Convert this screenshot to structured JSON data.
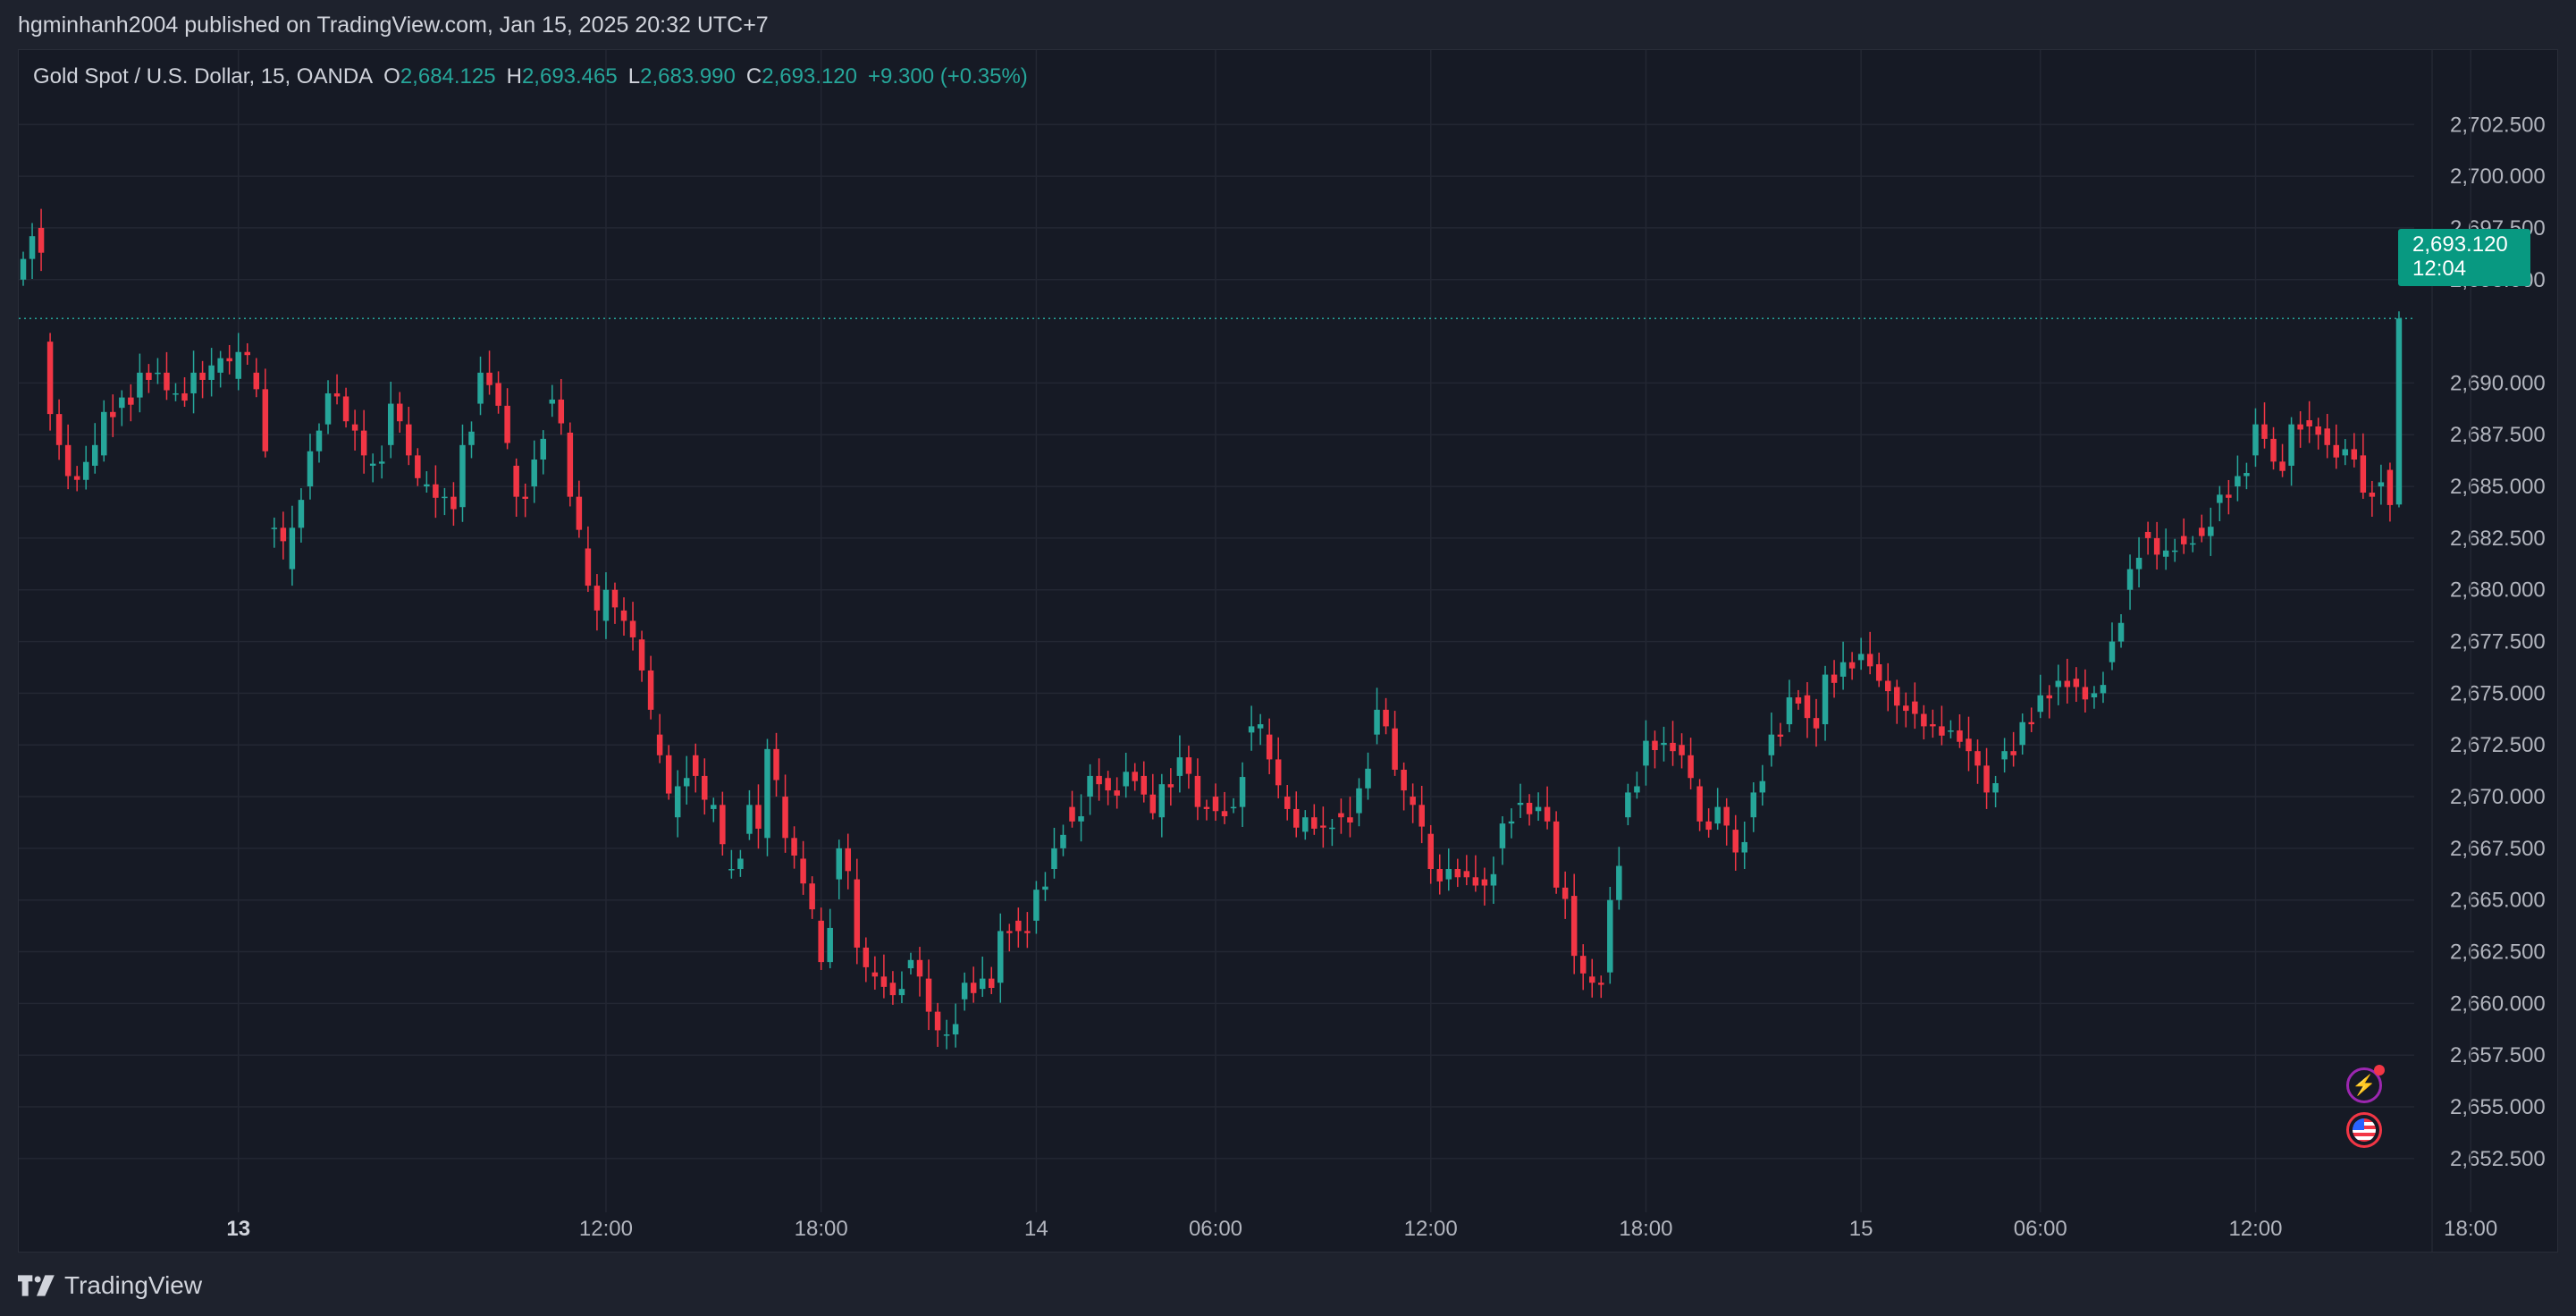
{
  "header": {
    "published_text": "hgminhanh2004 published on TradingView.com, Jan 15, 2025 20:32 UTC+7"
  },
  "legend": {
    "symbol": "Gold Spot / U.S. Dollar, 15, OANDA",
    "o_label": "O",
    "o_value": "2,684.125",
    "h_label": "H",
    "h_value": "2,693.465",
    "l_label": "L",
    "l_value": "2,683.990",
    "c_label": "C",
    "c_value": "2,693.120",
    "change": "+9.300 (+0.35%)"
  },
  "price_badge": {
    "price": "2,693.120",
    "countdown": "12:04"
  },
  "icons": {
    "flash": "lightning-icon",
    "flag": "us-flag-icon"
  },
  "footer": {
    "brand": "TradingView",
    "logo": "tradingview-logo-icon"
  },
  "colors": {
    "background": "#161a25",
    "up": "#26a69a",
    "down": "#f23645",
    "grid": "#232733",
    "text": "#d1d4dc",
    "badge": "#089981"
  },
  "chart_data": {
    "type": "candlestick",
    "symbol": "Gold Spot / U.S. Dollar",
    "interval": "15",
    "y_tick_labels": [
      "2,702.500",
      "2,700.000",
      "2,697.500",
      "2,695.000",
      "2,690.000",
      "2,687.500",
      "2,685.000",
      "2,682.500",
      "2,680.000",
      "2,677.500",
      "2,675.000",
      "2,672.500",
      "2,670.000",
      "2,667.500",
      "2,665.000",
      "2,662.500",
      "2,660.000",
      "2,657.500",
      "2,655.000",
      "2,652.500"
    ],
    "y_tick_values": [
      2702.5,
      2700,
      2697.5,
      2695,
      2690,
      2687.5,
      2685,
      2682.5,
      2680,
      2677.5,
      2675,
      2672.5,
      2670,
      2667.5,
      2665,
      2662.5,
      2660,
      2657.5,
      2655,
      2652.5
    ],
    "x_tick_labels": [
      "13",
      "12:00",
      "18:00",
      "14",
      "06:00",
      "12:00",
      "18:00",
      "15",
      "06:00",
      "12:00",
      "18:00"
    ],
    "x_tick_bold": [
      true,
      false,
      false,
      false,
      false,
      false,
      false,
      false,
      false,
      false,
      false
    ],
    "x_tick_bars": [
      24,
      65,
      89,
      113,
      133,
      157,
      181,
      205,
      225,
      249,
      273
    ],
    "ylim": [
      2649.9,
      2706.1
    ],
    "last_price": 2693.12,
    "anchors": [
      [
        0,
        2695,
        2696
      ],
      [
        2,
        2697.5,
        2696.3
      ],
      [
        3,
        2692,
        2688.5
      ],
      [
        4,
        2688.5,
        2687
      ],
      [
        5,
        2687,
        2685.5
      ],
      [
        8,
        2686,
        2687
      ],
      [
        9,
        2686.5,
        2688.6
      ],
      [
        11,
        2688.8,
        2689.3
      ],
      [
        13,
        2689.3,
        2690.5
      ],
      [
        15,
        2690.5,
        2690.5
      ],
      [
        17,
        2689.5,
        2689.5
      ],
      [
        19,
        2689.5,
        2690.5
      ],
      [
        22,
        2690.5,
        2691.2
      ],
      [
        24,
        2690.2,
        2691.5
      ],
      [
        26,
        2690.5,
        2689.7
      ],
      [
        28,
        2683,
        2683
      ],
      [
        30,
        2681,
        2683
      ],
      [
        32,
        2685,
        2686.7
      ],
      [
        34,
        2688,
        2689.5
      ],
      [
        37,
        2688,
        2687.7
      ],
      [
        39,
        2686,
        2686.1
      ],
      [
        41,
        2687,
        2689
      ],
      [
        43,
        2688,
        2686.5
      ],
      [
        45,
        2685,
        2685.1
      ],
      [
        47,
        2684.5,
        2684.5
      ],
      [
        49,
        2684,
        2687
      ],
      [
        51,
        2689,
        2690.5
      ],
      [
        53,
        2690,
        2688.9
      ],
      [
        55,
        2686,
        2684.5
      ],
      [
        57,
        2685,
        2686.3
      ],
      [
        59,
        2689,
        2689.2
      ],
      [
        61,
        2687.6,
        2684.5
      ],
      [
        63,
        2682,
        2680.2
      ],
      [
        65,
        2678.5,
        2680
      ],
      [
        67,
        2679,
        2678.5
      ],
      [
        69,
        2677.6,
        2676.1
      ],
      [
        71,
        2673,
        2672
      ],
      [
        73,
        2669,
        2670.5
      ],
      [
        75,
        2672,
        2671
      ],
      [
        77,
        2669.4,
        2669.6
      ],
      [
        79,
        2666.5,
        2666.5
      ],
      [
        81,
        2668.2,
        2669.6
      ],
      [
        83,
        2668,
        2672.3
      ],
      [
        85,
        2670,
        2668
      ],
      [
        87,
        2667,
        2665.8
      ],
      [
        89,
        2664,
        2662
      ],
      [
        91,
        2666,
        2667.5
      ],
      [
        93,
        2666,
        2662.7
      ],
      [
        95,
        2661.5,
        2661.3
      ],
      [
        97,
        2661,
        2660.4
      ],
      [
        99,
        2661.7,
        2662.1
      ],
      [
        101,
        2661.2,
        2659.6
      ],
      [
        103,
        2658.5,
        2658.5
      ],
      [
        105,
        2660.2,
        2661
      ],
      [
        107,
        2660.7,
        2661.2
      ],
      [
        109,
        2661,
        2663.5
      ],
      [
        111,
        2664,
        2663.5
      ],
      [
        113,
        2664,
        2665.5
      ],
      [
        115,
        2666.5,
        2667.5
      ],
      [
        117,
        2669.5,
        2668.8
      ],
      [
        119,
        2670,
        2671
      ],
      [
        121,
        2670.9,
        2670.3
      ],
      [
        123,
        2670.5,
        2671.2
      ],
      [
        125,
        2671,
        2670.1
      ],
      [
        127,
        2669,
        2670.6
      ],
      [
        129,
        2671,
        2671.9
      ],
      [
        131,
        2671,
        2669.5
      ],
      [
        133,
        2670,
        2669.3
      ],
      [
        135,
        2669.5,
        2669.5
      ],
      [
        137,
        2673.1,
        2673.4
      ],
      [
        138,
        2673.3,
        2673.5
      ],
      [
        139,
        2673,
        2671.8
      ],
      [
        141,
        2670,
        2669.4
      ],
      [
        143,
        2668.3,
        2669
      ],
      [
        145,
        2668.6,
        2668.5
      ],
      [
        147,
        2669.2,
        2669
      ],
      [
        149,
        2669.2,
        2670.4
      ],
      [
        151,
        2673,
        2674.2
      ],
      [
        153,
        2673.3,
        2671.3
      ],
      [
        155,
        2670,
        2669.6
      ],
      [
        157,
        2668.2,
        2666.5
      ],
      [
        159,
        2666,
        2666.5
      ],
      [
        161,
        2666.4,
        2666.1
      ],
      [
        163,
        2666,
        2665.7
      ],
      [
        165,
        2667.5,
        2668.7
      ],
      [
        167,
        2669.6,
        2669.7
      ],
      [
        169,
        2669.3,
        2669.5
      ],
      [
        171,
        2668.8,
        2665.6
      ],
      [
        173,
        2665.2,
        2662.3
      ],
      [
        175,
        2661.3,
        2661
      ],
      [
        177,
        2661.5,
        2665
      ],
      [
        179,
        2669,
        2670.2
      ],
      [
        181,
        2671.5,
        2672.7
      ],
      [
        183,
        2672.5,
        2672.6
      ],
      [
        185,
        2672.5,
        2672
      ],
      [
        187,
        2670.5,
        2668.8
      ],
      [
        189,
        2668.7,
        2669.5
      ],
      [
        191,
        2668.4,
        2667.3
      ],
      [
        193,
        2669,
        2670.2
      ],
      [
        195,
        2672,
        2673
      ],
      [
        197,
        2673.5,
        2674.8
      ],
      [
        199,
        2674.9,
        2673.8
      ],
      [
        201,
        2673.5,
        2675.9
      ],
      [
        203,
        2675.8,
        2676.5
      ],
      [
        205,
        2676.6,
        2676.9
      ],
      [
        207,
        2676.4,
        2675.6
      ],
      [
        209,
        2675.3,
        2674.4
      ],
      [
        211,
        2674.6,
        2674
      ],
      [
        213,
        2673.5,
        2673.4
      ],
      [
        215,
        2673.2,
        2673.2
      ],
      [
        217,
        2672.8,
        2672.2
      ],
      [
        219,
        2671.5,
        2670.2
      ],
      [
        221,
        2671.8,
        2672.2
      ],
      [
        223,
        2672.5,
        2673.6
      ],
      [
        225,
        2674.1,
        2674.9
      ],
      [
        227,
        2675.3,
        2675.6
      ],
      [
        229,
        2675.7,
        2675.3
      ],
      [
        231,
        2674.8,
        2675
      ],
      [
        233,
        2676.5,
        2677.5
      ],
      [
        235,
        2680,
        2681
      ],
      [
        237,
        2682.8,
        2682.5
      ],
      [
        239,
        2681.6,
        2681.9
      ],
      [
        241,
        2682.6,
        2682.2
      ],
      [
        243,
        2683,
        2682.6
      ],
      [
        245,
        2684.2,
        2684.6
      ],
      [
        247,
        2685,
        2685.5
      ],
      [
        249,
        2686.5,
        2688
      ],
      [
        251,
        2687.3,
        2686.2
      ],
      [
        253,
        2686,
        2688
      ],
      [
        255,
        2688.2,
        2687.9
      ],
      [
        257,
        2687.8,
        2687
      ],
      [
        259,
        2686.5,
        2686.8
      ],
      [
        261,
        2686.5,
        2684.7
      ],
      [
        263,
        2685,
        2685.2
      ],
      [
        264,
        2685.8,
        2684.1
      ],
      [
        265,
        2684.125,
        2693.12
      ]
    ],
    "last_bar": {
      "open": 2684.125,
      "high": 2693.465,
      "low": 2683.99,
      "close": 2693.12
    }
  }
}
